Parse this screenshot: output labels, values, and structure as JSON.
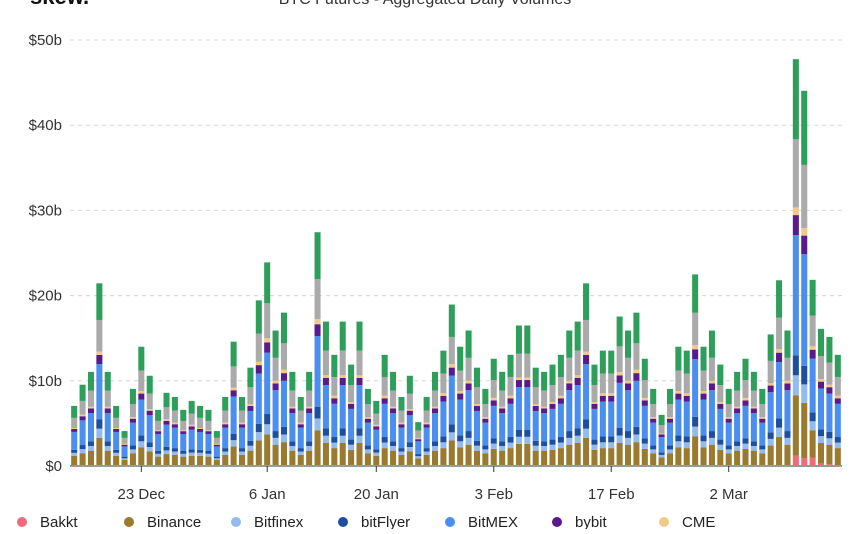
{
  "chart_data": {
    "type": "stacked-bar",
    "logo": "skew.",
    "title": "BTC Futures - Aggregated Daily Volumes",
    "categories": [
      null,
      null,
      null,
      null,
      null,
      null,
      null,
      null,
      "23 Dec",
      null,
      null,
      null,
      null,
      null,
      null,
      null,
      null,
      null,
      null,
      null,
      null,
      null,
      null,
      "6 Jan",
      null,
      null,
      null,
      null,
      null,
      null,
      null,
      null,
      null,
      null,
      null,
      null,
      "20 Jan",
      null,
      null,
      null,
      null,
      null,
      null,
      null,
      null,
      null,
      null,
      null,
      null,
      null,
      "3 Feb",
      null,
      null,
      null,
      null,
      null,
      null,
      null,
      null,
      null,
      null,
      null,
      null,
      null,
      "17 Feb",
      null,
      null,
      null,
      null,
      null,
      null,
      null,
      null,
      null,
      null,
      null,
      null,
      null,
      "2 Mar",
      null,
      null,
      null,
      null,
      null,
      null,
      null,
      null,
      null,
      null,
      null,
      null,
      null
    ],
    "ylim": [
      0,
      50
    ],
    "yticks": [
      {
        "value": 0,
        "label": "$0"
      },
      {
        "value": 10,
        "label": "$10b"
      },
      {
        "value": 20,
        "label": "$20b"
      },
      {
        "value": 30,
        "label": "$30b"
      },
      {
        "value": 40,
        "label": "$40b"
      },
      {
        "value": 50,
        "label": "$50b"
      }
    ],
    "grid": true,
    "legend": "bottom",
    "series": [
      {
        "name": "Bakkt",
        "color": "#ee6b78",
        "values": [
          0.1,
          0.1,
          0.1,
          0.1,
          0.1,
          0.1,
          0.1,
          0.1,
          0.1,
          0.1,
          0.1,
          0.1,
          0.1,
          0.1,
          0.1,
          0.1,
          0.1,
          0.1,
          0.1,
          0.1,
          0.1,
          0.1,
          0.1,
          0.1,
          0.1,
          0.1,
          0.1,
          0.1,
          0.1,
          0.1,
          0.1,
          0.1,
          0.1,
          0.1,
          0.1,
          0.1,
          0.1,
          0.1,
          0.1,
          0.1,
          0.1,
          0.1,
          0.1,
          0.1,
          0.1,
          0.1,
          0.1,
          0.1,
          0.1,
          0.1,
          0.1,
          0.1,
          0.1,
          0.1,
          0.1,
          0.1,
          0.1,
          0.1,
          0.1,
          0.1,
          0.1,
          0.1,
          0.1,
          0.1,
          0.1,
          0.1,
          0.1,
          0.1,
          0.1,
          0.1,
          0.1,
          0.1,
          0.1,
          0.1,
          0.1,
          0.1,
          0.1,
          0.1,
          0.1,
          0.1,
          0.1,
          0.1,
          0.1,
          0.1,
          0.1,
          0.1,
          1.2,
          0.9,
          1.0,
          0.3,
          0.2,
          0.1
        ]
      },
      {
        "name": "Binance",
        "color": "#9a7a2e",
        "values": [
          1.1,
          1.4,
          1.7,
          3.2,
          1.7,
          1.1,
          0.6,
          1.4,
          2.1,
          1.6,
          1,
          1.3,
          1.2,
          1,
          1.1,
          1.1,
          1,
          0.6,
          1.2,
          2.2,
          1.2,
          1.7,
          2.9,
          3.6,
          2.4,
          2.7,
          1.7,
          1.2,
          1.7,
          4.1,
          2.6,
          2,
          2.6,
          1.8,
          2.6,
          1.4,
          1.1,
          2,
          1.7,
          1.2,
          1.6,
          0.8,
          1.2,
          1.7,
          2,
          2.9,
          2.1,
          2.4,
          1.7,
          1.4,
          1.9,
          1.7,
          2,
          2.5,
          2.5,
          1.7,
          1.7,
          1.8,
          2,
          2.4,
          2.6,
          3.2,
          1.8,
          2,
          2,
          2.6,
          2.4,
          2.7,
          1.9,
          1.4,
          0.9,
          1.4,
          2.1,
          2,
          3.4,
          2.1,
          2.4,
          1.8,
          1.4,
          1.7,
          1.9,
          1.7,
          1.4,
          2.3,
          3.3,
          2.4,
          7.1,
          6.5,
          3.2,
          2.4,
          2.3,
          2
        ]
      },
      {
        "name": "Bitfinex",
        "color": "#93bbee",
        "values": [
          0.35,
          0.48,
          0.55,
          1.08,
          0.55,
          0.35,
          0.2,
          0.45,
          0.7,
          0.53,
          0.33,
          0.43,
          0.4,
          0.33,
          0.38,
          0.35,
          0.33,
          0.2,
          0.4,
          0.73,
          0.4,
          0.58,
          0.98,
          1.2,
          0.8,
          0.9,
          0.55,
          0.4,
          0.55,
          1.38,
          0.85,
          0.65,
          0.85,
          0.6,
          0.85,
          0.45,
          0.38,
          0.65,
          0.55,
          0.4,
          0.53,
          0.25,
          0.4,
          0.55,
          0.68,
          0.95,
          0.7,
          0.8,
          0.58,
          0.45,
          0.63,
          0.55,
          0.65,
          0.83,
          0.83,
          0.58,
          0.55,
          0.6,
          0.65,
          0.8,
          0.85,
          1.08,
          0.6,
          0.68,
          0.68,
          0.88,
          0.8,
          0.9,
          0.63,
          0.45,
          0.3,
          0.45,
          0.7,
          0.68,
          1.13,
          0.7,
          0.8,
          0.6,
          0.45,
          0.55,
          0.63,
          0.55,
          0.45,
          0.78,
          1.1,
          0.8,
          2.35,
          2.18,
          1.05,
          0.8,
          0.75,
          0.65
        ]
      },
      {
        "name": "bitFlyer",
        "color": "#1d4f9e",
        "values": [
          0.35,
          0.48,
          0.55,
          1.08,
          0.55,
          0.35,
          0.2,
          0.45,
          0.7,
          0.53,
          0.33,
          0.43,
          0.4,
          0.33,
          0.38,
          0.35,
          0.33,
          0.2,
          0.4,
          0.73,
          0.4,
          0.58,
          0.98,
          1.2,
          0.8,
          0.9,
          0.55,
          0.4,
          0.55,
          1.38,
          0.85,
          0.65,
          0.85,
          0.6,
          0.85,
          0.45,
          0.38,
          0.65,
          0.55,
          0.4,
          0.53,
          0.25,
          0.4,
          0.55,
          0.68,
          0.95,
          0.7,
          0.8,
          0.58,
          0.45,
          0.63,
          0.55,
          0.65,
          0.83,
          0.83,
          0.58,
          0.55,
          0.6,
          0.65,
          0.8,
          0.85,
          1.08,
          0.6,
          0.68,
          0.68,
          0.88,
          0.8,
          0.9,
          0.63,
          0.45,
          0.3,
          0.45,
          0.7,
          0.68,
          1.13,
          0.7,
          0.8,
          0.6,
          0.45,
          0.55,
          0.63,
          0.55,
          0.45,
          0.78,
          1.1,
          0.8,
          2.35,
          2.18,
          1.05,
          0.8,
          0.75,
          0.65
        ]
      },
      {
        "name": "BitMEX",
        "color": "#4a8ef0",
        "values": [
          2.1,
          2.9,
          3.3,
          6.5,
          3.3,
          2.1,
          1.2,
          2.7,
          4.2,
          3.2,
          2,
          2.6,
          2.4,
          2,
          2.3,
          2.1,
          2,
          1.2,
          2.4,
          4.4,
          2.4,
          3.5,
          5.9,
          7.2,
          4.8,
          5.4,
          3.3,
          2.4,
          3.3,
          8.3,
          5.1,
          3.9,
          5.1,
          3.6,
          5.1,
          2.7,
          2.3,
          3.9,
          3.3,
          2.4,
          3.2,
          1.5,
          2.4,
          3.3,
          4.1,
          5.7,
          4.2,
          4.8,
          3.5,
          2.7,
          3.8,
          3.3,
          3.9,
          5,
          5,
          3.5,
          3.3,
          3.6,
          3.9,
          4.8,
          5.1,
          6.5,
          3.6,
          4.1,
          4.1,
          5.3,
          4.8,
          5.4,
          3.8,
          2.7,
          1.8,
          2.7,
          4.2,
          4.1,
          6.8,
          4.2,
          4.8,
          3.6,
          2.7,
          3.3,
          3.8,
          3.3,
          2.7,
          4.7,
          6.6,
          4.8,
          14.1,
          13.1,
          6.3,
          4.8,
          4.5,
          3.9
        ]
      },
      {
        "name": "bybit",
        "color": "#5a1a8e",
        "values": [
          0.35,
          0.48,
          0.55,
          1.08,
          0.55,
          0.35,
          0.2,
          0.45,
          0.7,
          0.53,
          0.33,
          0.43,
          0.4,
          0.33,
          0.38,
          0.35,
          0.33,
          0.2,
          0.4,
          0.73,
          0.4,
          0.58,
          0.98,
          1.2,
          0.8,
          0.9,
          0.55,
          0.4,
          0.55,
          1.38,
          0.85,
          0.65,
          0.85,
          0.6,
          0.85,
          0.45,
          0.38,
          0.65,
          0.55,
          0.4,
          0.53,
          0.25,
          0.4,
          0.55,
          0.68,
          0.95,
          0.7,
          0.8,
          0.58,
          0.45,
          0.63,
          0.55,
          0.65,
          0.83,
          0.83,
          0.58,
          0.55,
          0.6,
          0.65,
          0.8,
          0.85,
          1.08,
          0.6,
          0.68,
          0.68,
          0.88,
          0.8,
          0.9,
          0.63,
          0.45,
          0.3,
          0.45,
          0.7,
          0.68,
          1.13,
          0.7,
          0.8,
          0.6,
          0.45,
          0.55,
          0.63,
          0.55,
          0.45,
          0.78,
          1.1,
          0.8,
          2.35,
          2.18,
          1.05,
          0.8,
          0.75,
          0.65
        ]
      },
      {
        "name": "CME",
        "color": "#f2c98a",
        "values": [
          0.1,
          0.2,
          0.2,
          0.4,
          0.2,
          0.1,
          0.1,
          0.2,
          0.3,
          0.2,
          0.1,
          0.2,
          0.2,
          0.1,
          0.2,
          0.1,
          0.1,
          0.1,
          0.2,
          0.3,
          0.2,
          0.2,
          0.4,
          0.5,
          0.3,
          0.4,
          0.2,
          0.2,
          0.2,
          0.6,
          0.3,
          0.3,
          0.3,
          0.2,
          0.3,
          0.2,
          0.2,
          0.3,
          0.2,
          0.2,
          0.2,
          0.1,
          0.2,
          0.2,
          0.3,
          0.4,
          0.3,
          0.3,
          0.2,
          0.2,
          0.3,
          0.2,
          0.3,
          0.3,
          0.3,
          0.2,
          0.2,
          0.2,
          0.3,
          0.3,
          0.3,
          0.4,
          0.2,
          0.3,
          0.3,
          0.4,
          0.3,
          0.4,
          0.3,
          0.2,
          0.1,
          0.2,
          0.3,
          0.3,
          0.5,
          0.3,
          0.3,
          0.2,
          0.2,
          0.2,
          0.3,
          0.2,
          0.2,
          0.3,
          0.4,
          0.3,
          0.9,
          0.9,
          0.4,
          0.3,
          0.3,
          0.3
        ]
      },
      {
        "color": "#aaaaaa",
        "values": [
          1.2,
          1.6,
          1.9,
          3.7,
          1.9,
          1.2,
          0.7,
          1.5,
          2.4,
          1.8,
          1.1,
          1.4,
          1.4,
          1.1,
          1.3,
          1.2,
          1.1,
          0.7,
          1.4,
          2.5,
          1.4,
          2,
          3.3,
          4.1,
          2.7,
          3.1,
          1.9,
          1.4,
          1.9,
          4.7,
          2.9,
          2.2,
          2.9,
          2,
          2.9,
          1.5,
          1.3,
          2.2,
          1.9,
          1.4,
          1.8,
          0.9,
          1.4,
          1.9,
          2.3,
          3.2,
          2.4,
          2.7,
          2,
          1.5,
          2.1,
          1.9,
          2.2,
          2.8,
          2.8,
          2,
          1.9,
          2,
          2.2,
          2.7,
          2.9,
          3.7,
          2,
          2.3,
          2.3,
          3,
          2.7,
          3.1,
          2.1,
          1.5,
          1,
          1.5,
          2.4,
          2.3,
          3.8,
          2.4,
          2.7,
          2,
          1.5,
          1.9,
          2.1,
          1.9,
          1.5,
          2.6,
          3.7,
          2.7,
          8,
          7.4,
          3.6,
          2.7,
          2.6,
          2.2
        ]
      },
      {
        "color": "#2e9e5b",
        "values": [
          1.4,
          1.9,
          2.2,
          4.3,
          2.2,
          1.4,
          0.8,
          1.8,
          2.8,
          2.1,
          1.3,
          1.7,
          1.6,
          1.3,
          1.5,
          1.4,
          1.3,
          0.8,
          1.6,
          2.9,
          1.6,
          2.3,
          3.9,
          4.8,
          3.2,
          3.6,
          2.2,
          1.6,
          2.2,
          5.5,
          3.4,
          2.6,
          3.4,
          2.4,
          3.4,
          1.8,
          1.5,
          2.6,
          2.2,
          1.6,
          2.1,
          1,
          1.6,
          2.2,
          2.7,
          3.8,
          2.8,
          3.2,
          2.3,
          1.8,
          2.5,
          2.2,
          2.6,
          3.3,
          3.3,
          2.3,
          2.2,
          2.4,
          2.6,
          3.2,
          3.4,
          4.3,
          2.4,
          2.7,
          2.7,
          3.5,
          3.2,
          3.6,
          2.5,
          1.8,
          1.2,
          1.8,
          2.8,
          2.7,
          4.5,
          2.8,
          3.2,
          2.4,
          1.8,
          2.2,
          2.5,
          2.2,
          1.8,
          3.1,
          4.4,
          3.2,
          9.4,
          8.7,
          4.2,
          3.2,
          3,
          2.6
        ]
      }
    ]
  }
}
